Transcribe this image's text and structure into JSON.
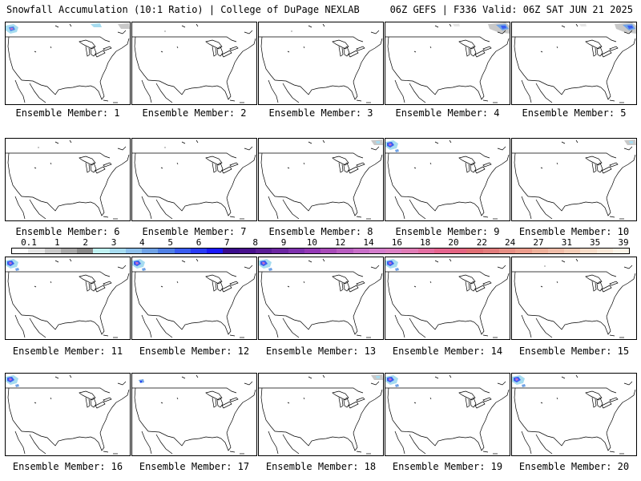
{
  "header": {
    "title_left": "Snowfall Accumulation (10:1 Ratio) | College of DuPage NEXLAB",
    "title_right": "06Z GEFS | F336 Valid: 06Z SAT JUN 21 2025"
  },
  "colorbar": {
    "labels": [
      "0.1",
      "1",
      "2",
      "3",
      "4",
      "5",
      "6",
      "7",
      "8",
      "9",
      "10",
      "12",
      "14",
      "16",
      "18",
      "20",
      "22",
      "24",
      "27",
      "31",
      "35",
      "39"
    ],
    "colors": [
      "#ffffff",
      "#e6e6e6",
      "#c8c8c8",
      "#a8a8a8",
      "#888888",
      "#bff2f2",
      "#a6dcf0",
      "#8cc0ec",
      "#6fa2e6",
      "#5080e6",
      "#3a5cf0",
      "#2a3cf6",
      "#1a18fa",
      "#3a0c8c",
      "#48108c",
      "#5a1c96",
      "#6c26a2",
      "#7e30ae",
      "#9438b6",
      "#a84ab8",
      "#b85cc0",
      "#c86ec8",
      "#d47ccc",
      "#dc80c4",
      "#e07cb6",
      "#e46ea2",
      "#e6648e",
      "#e46482",
      "#e06e74",
      "#e27c7c",
      "#e68e84",
      "#ec9c8c",
      "#eeb09a",
      "#f0bca8",
      "#f4ccb6",
      "#f8dcc8",
      "#fae8d8",
      "#fcf4e8"
    ]
  },
  "members": [
    {
      "label": "Ensemble Member: 1",
      "snow": "nw-heavy-ne-light"
    },
    {
      "label": "Ensemble Member: 2",
      "snow": "trace"
    },
    {
      "label": "Ensemble Member: 3",
      "snow": "trace"
    },
    {
      "label": "Ensemble Member: 4",
      "snow": "ne-heavy"
    },
    {
      "label": "Ensemble Member: 5",
      "snow": "ne-heavy"
    },
    {
      "label": "Ensemble Member: 6",
      "snow": "trace"
    },
    {
      "label": "Ensemble Member: 7",
      "snow": "trace"
    },
    {
      "label": "Ensemble Member: 8",
      "snow": "ne-light"
    },
    {
      "label": "Ensemble Member: 9",
      "snow": "nw-heavy"
    },
    {
      "label": "Ensemble Member: 10",
      "snow": "ne-light"
    },
    {
      "label": "Ensemble Member: 11",
      "snow": "nw-heavy"
    },
    {
      "label": "Ensemble Member: 12",
      "snow": "nw-heavy"
    },
    {
      "label": "Ensemble Member: 13",
      "snow": "nw-heavy"
    },
    {
      "label": "Ensemble Member: 14",
      "snow": "nw-heavy"
    },
    {
      "label": "Ensemble Member: 15",
      "snow": "trace"
    },
    {
      "label": "Ensemble Member: 16",
      "snow": "nw-heavy"
    },
    {
      "label": "Ensemble Member: 17",
      "snow": "nw-light"
    },
    {
      "label": "Ensemble Member: 18",
      "snow": "ne-light"
    },
    {
      "label": "Ensemble Member: 19",
      "snow": "nw-heavy"
    },
    {
      "label": "Ensemble Member: 20",
      "snow": "nw-heavy"
    }
  ]
}
